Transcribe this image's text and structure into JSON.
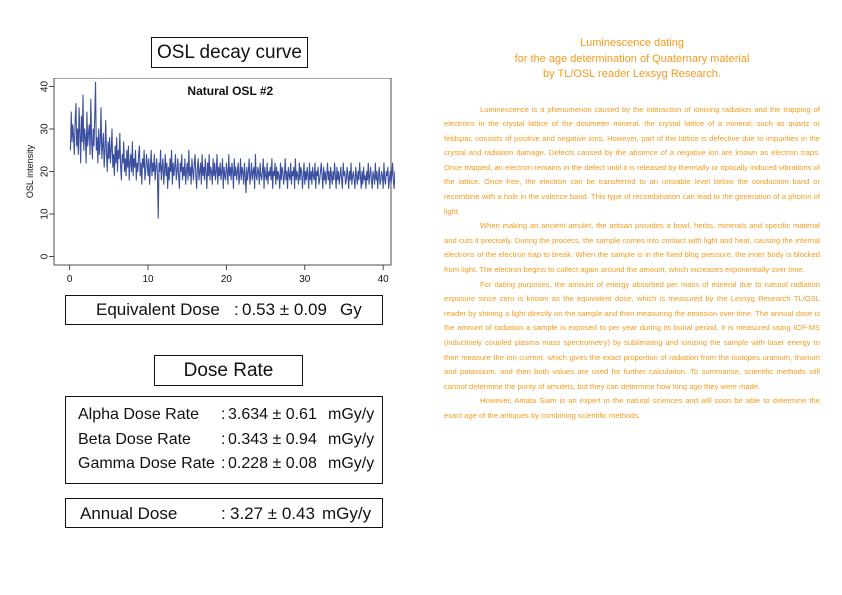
{
  "osl_title": "OSL decay curve",
  "equivalent_dose": {
    "label": "Equivalent Dose",
    "sep": ":",
    "value": "0.53 ± 0.09",
    "unit": "Gy"
  },
  "dose_rate_title": "Dose Rate",
  "dose_rates": [
    {
      "label": "Alpha Dose Rate",
      "sep": ":",
      "value": "3.634 ± 0.61",
      "unit": "mGy/y"
    },
    {
      "label": "Beta Dose Rate",
      "sep": ":",
      "value": "0.343 ± 0.94",
      "unit": "mGy/y"
    },
    {
      "label": "Gamma Dose Rate",
      "sep": ":",
      "value": "0.228 ± 0.08",
      "unit": "mGy/y"
    }
  ],
  "annual_dose": {
    "label": "Annual Dose",
    "sep": ":",
    "value": "3.27 ± 0.43",
    "unit": "mGy/y"
  },
  "article": {
    "title_lines": [
      "Luminescence dating",
      "for the age determination of Quaternary material",
      "by TL/OSL reader Lexsyg Research."
    ],
    "paragraphs": [
      "Luminescence is a phenomenon caused by the interaction of ionising radiation and the trapping of electrons in the crystal lattice of the dosimeter mineral. the crystal lattice of a mineral, such as quartz or feldspar, consists of positive and negative ions. However, part of the lattice is defective due to impurities in the crystal and radiation damage. Defects caused by the absence of a negative ion are known as electron traps. Once trapped, an electron remains in the defect until it is released by thermally or optically induced vibrations of the lattice. Once free, the electron can be transferred to an unstable level below the conduction band or recombine with a hole in the valence band. This type of recombination can lead to the generation of a photon of light.",
      "When making an ancient amulet, the artisan provides a bowl, herbs, minerals and specific material and cuts it precisely. During the process, the sample comes into contact with light and heat, causing the internal electrons of the electron trap to break. When the sample is in the fixed blog pressure, the inner body is blocked from light. The electron begins to collect again around the amount, which increases exponentially over time.",
      "For dating purposes, the amount of energy absorbed per mass of mineral due to natural radiation exposure since zero is known as the equivalent dose, which is measured by the Lexsyg Research TL/OSL reader by shining a light directly on the sample and then measuring the emission over time. The annual dose is the amount of radiation a sample is exposed to per year during its burial period. It is measured using ICP-MS (inductively coupled plasma mass spectrometry) by sublimating and ionizing the sample with laser energy to then measure the ion current, which gives the exact proportion of radiation from the isotopes uranium, thorium and potassium, and then both values are used for further calculation. To summarise, scientific methods still cannot determine the purity of amulets, but they can determine how long ago they were made.",
      "However, Amata Siam is an expert in the natural sciences and will soon be able to determine the exact age of the antiques by combining scientific methods."
    ]
  },
  "chart_data": {
    "type": "line",
    "title": "Natural OSL #2",
    "xlabel": "",
    "ylabel": "OSL intensity",
    "xlim": [
      -2,
      41
    ],
    "ylim": [
      -2,
      42
    ],
    "xticks": [
      0,
      10,
      20,
      30,
      40
    ],
    "yticks": [
      0,
      10,
      20,
      30,
      40
    ],
    "color": "#3b4fa0",
    "x_start": 0.1,
    "x_step": 0.1,
    "y": [
      25,
      34,
      27,
      31,
      28,
      24,
      32,
      36,
      26,
      30,
      24,
      35,
      29,
      22,
      33,
      27,
      38,
      25,
      30,
      28,
      22,
      34,
      26,
      29,
      31,
      24,
      37,
      27,
      23,
      30,
      26,
      33,
      41,
      25,
      28,
      22,
      30,
      24,
      27,
      35,
      23,
      26,
      29,
      21,
      25,
      32,
      24,
      20,
      27,
      23,
      28,
      22,
      25,
      30,
      21,
      24,
      19,
      26,
      22,
      28,
      20,
      25,
      23,
      29,
      21,
      18,
      24,
      22,
      27,
      20,
      23,
      19,
      25,
      21,
      26,
      18,
      22,
      24,
      20,
      27,
      19,
      23,
      21,
      25,
      18,
      22,
      20,
      24,
      26,
      19,
      22,
      17,
      23,
      21,
      25,
      18,
      20,
      24,
      22,
      19,
      23,
      17,
      21,
      25,
      19,
      22,
      20,
      24,
      18,
      21,
      23,
      19,
      9,
      22,
      20,
      25,
      18,
      21,
      23,
      17,
      20,
      24,
      19,
      22,
      16,
      21,
      18,
      23,
      20,
      25,
      17,
      22,
      19,
      21,
      24,
      18,
      20,
      23,
      19,
      16,
      22,
      20,
      24,
      18,
      21,
      19,
      23,
      17,
      20,
      22,
      18,
      25,
      19,
      21,
      17,
      23,
      20,
      18,
      22,
      24,
      19,
      16,
      21,
      23,
      18,
      20,
      22,
      17,
      24,
      19,
      21,
      18,
      23,
      20,
      16,
      22,
      19,
      24,
      18,
      21,
      20,
      17,
      23,
      19,
      22,
      18,
      20,
      24,
      17,
      21,
      19,
      22,
      18,
      20,
      23,
      16,
      21,
      19,
      18,
      22,
      20,
      17,
      24,
      19,
      21,
      18,
      22,
      20,
      16,
      23,
      19,
      21,
      18,
      20,
      22,
      17,
      19,
      23,
      18,
      21,
      20,
      17,
      22,
      19,
      15,
      21,
      18,
      20,
      23,
      17,
      19,
      22,
      18,
      20,
      21,
      16,
      24,
      19,
      18,
      21,
      20,
      17,
      22,
      19,
      18,
      20,
      23,
      16,
      21,
      19,
      18,
      22,
      17,
      20,
      19,
      21,
      18,
      23,
      16,
      20,
      19,
      22,
      17,
      21,
      18,
      20,
      19,
      16,
      22,
      18,
      21,
      20,
      17,
      19,
      23,
      18,
      20,
      16,
      21,
      19,
      18,
      22,
      17,
      20,
      19,
      21,
      16,
      23,
      18,
      20,
      19,
      17,
      22,
      18,
      21,
      20,
      16,
      19,
      22,
      17,
      20,
      18,
      21,
      19,
      16,
      22,
      18,
      20,
      17,
      21,
      19,
      18,
      22,
      16,
      20,
      19,
      21,
      17,
      18,
      20,
      22,
      19,
      16,
      21,
      18,
      20,
      17,
      19,
      22,
      18,
      20,
      16,
      21,
      19,
      17,
      20,
      18,
      22,
      19,
      16,
      21,
      18,
      20,
      17,
      19,
      21,
      18,
      16,
      22,
      19,
      20,
      17,
      18,
      21,
      19,
      16,
      20,
      18,
      22,
      17,
      19,
      20,
      18,
      16,
      21,
      19,
      17,
      20,
      18,
      22,
      19,
      16,
      20,
      17,
      21,
      18,
      19,
      16,
      20,
      18,
      22,
      17,
      19,
      21,
      18,
      16,
      20,
      19,
      17,
      22,
      18,
      20,
      16,
      19,
      21,
      17,
      18,
      20,
      19,
      16,
      22,
      18,
      17,
      20,
      19,
      21,
      16,
      18,
      20,
      17,
      19,
      22,
      18,
      16,
      20,
      19,
      17,
      21,
      18,
      19,
      16,
      20,
      18,
      17,
      22,
      19,
      20,
      16,
      18,
      21,
      17,
      19,
      20,
      16,
      22,
      18,
      19,
      17,
      20,
      18,
      16,
      21,
      19,
      17,
      18,
      20,
      16,
      22,
      19,
      18,
      17
    ]
  }
}
